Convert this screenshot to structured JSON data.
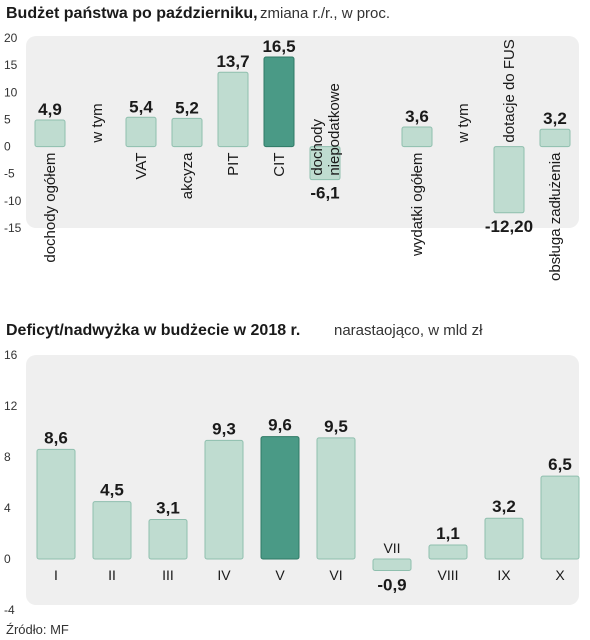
{
  "chart_data": [
    {
      "type": "bar",
      "title": "Budżet państwa po październiku,",
      "subtitle": "zmiana r./r., w proc.",
      "categories": [
        "dochody ogółem",
        "w tym",
        "VAT",
        "akcyza",
        "PIT",
        "CIT",
        "dochody niepodatkowe",
        "",
        "wydatki ogółem",
        "w tym",
        "dotacje do FUS",
        "obsługa zadłużenia"
      ],
      "values": [
        4.9,
        null,
        5.4,
        5.2,
        13.7,
        16.5,
        -6.1,
        null,
        3.6,
        null,
        -12.2,
        3.2
      ],
      "value_labels": [
        "4,9",
        "",
        "5,4",
        "5,2",
        "13,7",
        "16,5",
        "-6,1",
        "",
        "3,6",
        "",
        "-12,20",
        "3,2"
      ],
      "highlight": "CIT",
      "yticks": [
        "20",
        "15",
        "10",
        "5",
        "0",
        "-5",
        "-10",
        "-15"
      ],
      "ylim": [
        -15,
        20
      ],
      "grid": false
    },
    {
      "type": "bar",
      "title": "Deficyt/nadwyżka w budżecie w 2018 r.",
      "subtitle": "narastaojąco, w mld zł",
      "categories": [
        "I",
        "II",
        "III",
        "IV",
        "V",
        "VI",
        "VII",
        "VIII",
        "IX",
        "X"
      ],
      "values": [
        8.6,
        4.5,
        3.1,
        9.3,
        9.6,
        9.5,
        -0.9,
        1.1,
        3.2,
        6.5
      ],
      "value_labels": [
        "8,6",
        "4,5",
        "3,1",
        "9,3",
        "9,6",
        "9,5",
        "-0,9",
        "1,1",
        "3,2",
        "6,5"
      ],
      "highlight": "V",
      "yticks": [
        "16",
        "12",
        "8",
        "4",
        "0",
        "-4"
      ],
      "ylim": [
        -4,
        16
      ],
      "grid": false
    }
  ],
  "source": "Źródło: MF",
  "colors": {
    "bar": "#bfdcd0",
    "bar_stroke": "#8fbfae",
    "highlight": "#4a9a86",
    "highlight_stroke": "#2f7a66",
    "panel": "#efefef"
  }
}
